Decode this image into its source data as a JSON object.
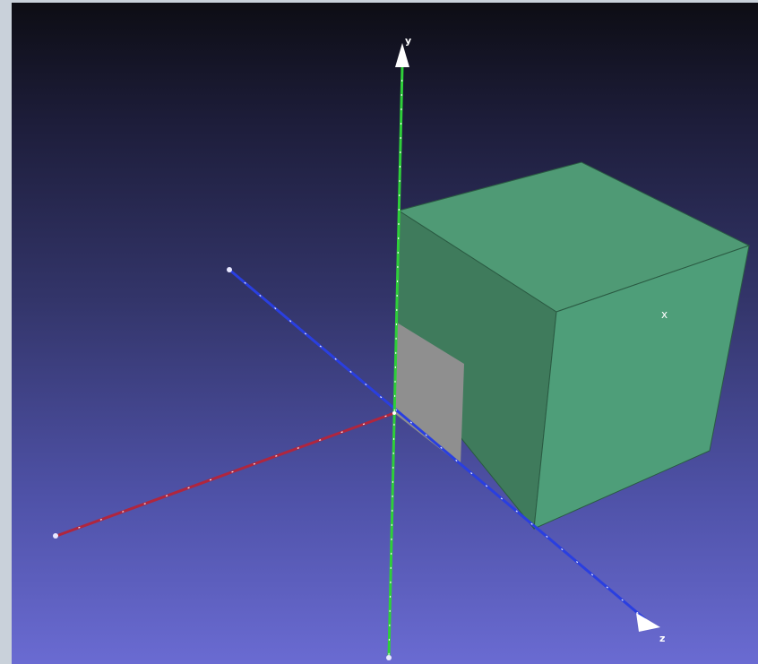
{
  "viewport": {
    "axes": {
      "y_label": "y",
      "z_label": "z"
    },
    "marker_label": "x",
    "colors": {
      "x_axis": "#b0263e",
      "y_axis": "#2fcf3a",
      "z_axis": "#2a3fe0",
      "cube_top": "#4f9a75",
      "cube_front": "#4e9e79",
      "cube_side": "#3f7b5c",
      "cutout": "#8f8f8f"
    }
  }
}
